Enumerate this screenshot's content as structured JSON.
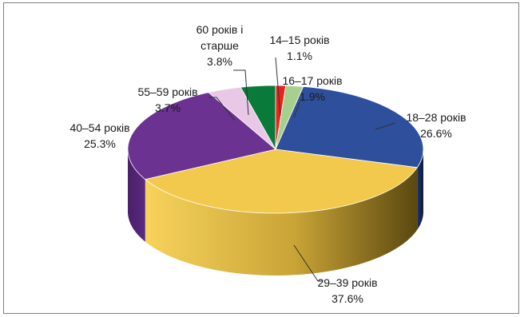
{
  "chart_data": {
    "type": "pie",
    "title": "",
    "slices": [
      {
        "label": "14–15 років",
        "value": 1.1,
        "value_label": "1.1%",
        "color": "#e8241c"
      },
      {
        "label": "16–17 років",
        "value": 1.9,
        "value_label": "1.9%",
        "color": "#a8d08d"
      },
      {
        "label": "18–28 років",
        "value": 26.6,
        "value_label": "26.6%",
        "color": "#2e4f9c"
      },
      {
        "label": "29–39 років",
        "value": 37.6,
        "value_label": "37.6%",
        "color": "#f2c94c"
      },
      {
        "label": "40–54 років",
        "value": 25.3,
        "value_label": "25.3%",
        "color": "#6b3291"
      },
      {
        "label": "55–59 років",
        "value": 3.7,
        "value_label": "3.7%",
        "color": "#e8c8e6"
      },
      {
        "label": "60 років і старше",
        "label_lines": [
          "60 років і",
          "старше"
        ],
        "value": 3.8,
        "value_label": "3.8%",
        "color": "#0a7a3a"
      }
    ],
    "legend": "none",
    "style": "3d-exploded-off"
  }
}
